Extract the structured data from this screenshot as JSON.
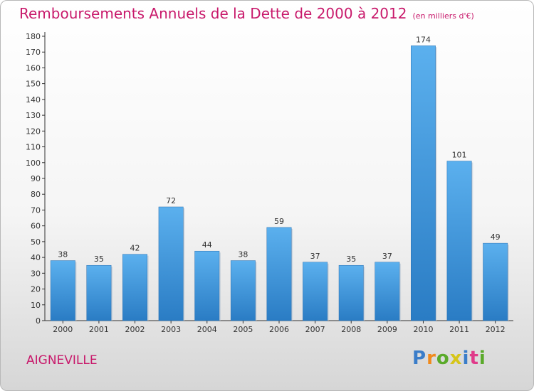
{
  "chart_data": {
    "type": "bar",
    "title": "Remboursements Annuels de la Dette de 2000 à 2012",
    "unit_note": "(en milliers d'€)",
    "categories": [
      "2000",
      "2001",
      "2002",
      "2003",
      "2004",
      "2005",
      "2006",
      "2007",
      "2008",
      "2009",
      "2010",
      "2011",
      "2012"
    ],
    "values": [
      38,
      35,
      42,
      72,
      44,
      38,
      59,
      37,
      35,
      37,
      174,
      101,
      49
    ],
    "ylim": [
      0,
      180
    ],
    "ytick_step": 10,
    "grid": false,
    "bar_color": "#4a9fe0"
  },
  "location": "AIGNEVILLE",
  "brand": {
    "letters": [
      "P",
      "r",
      "o",
      "x",
      "i",
      "t",
      "i"
    ],
    "colors": [
      "#3a7dc9",
      "#f08a1c",
      "#5aaa2a",
      "#d6c51a",
      "#3a7dc9",
      "#e03a8a",
      "#5aaa2a"
    ]
  }
}
